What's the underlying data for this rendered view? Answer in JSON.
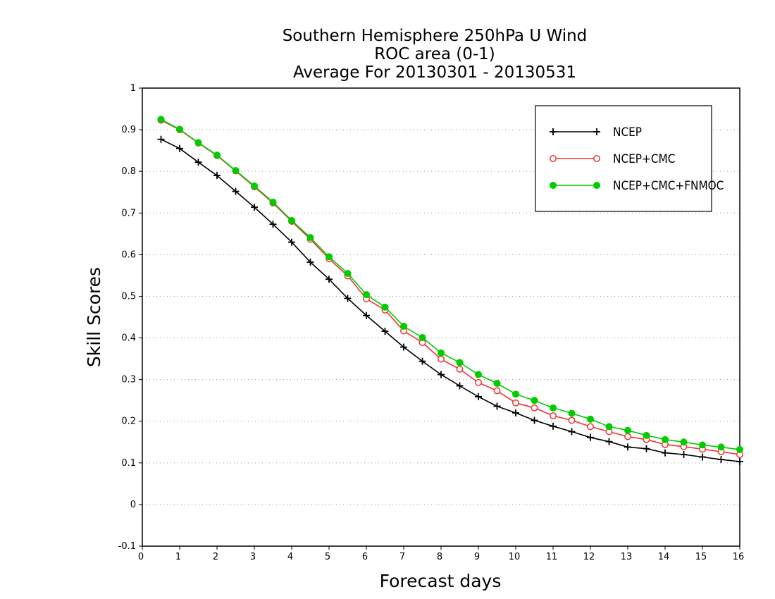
{
  "chart_data": {
    "type": "line",
    "title": [
      "Southern Hemisphere 250hPa U Wind",
      "ROC area (0-1)",
      "Average For 20130301 - 20130531"
    ],
    "xlabel": "Forecast days",
    "ylabel": "Skill Scores",
    "xlim": [
      0,
      16
    ],
    "ylim": [
      -0.1,
      1
    ],
    "x_ticks": [
      0,
      1,
      2,
      3,
      4,
      5,
      6,
      7,
      8,
      9,
      10,
      11,
      12,
      13,
      14,
      15,
      16
    ],
    "y_ticks": [
      -0.1,
      0,
      0.1,
      0.2,
      0.3,
      0.4,
      0.5,
      0.6,
      0.7,
      0.8,
      0.9,
      1
    ],
    "y_tick_labels": [
      "-0.1",
      "0",
      "0.1",
      "0.2",
      "0.3",
      "0.4",
      "0.5",
      "0.6",
      "0.7",
      "0.8",
      "0.9",
      "1"
    ],
    "grid": "horizontal-dotted",
    "legend_position": "top-right",
    "x": [
      0.5,
      1,
      1.5,
      2,
      2.5,
      3,
      3.5,
      4,
      4.5,
      5,
      5.5,
      6,
      6.5,
      7,
      7.5,
      8,
      8.5,
      9,
      9.5,
      10,
      10.5,
      11,
      11.5,
      12,
      12.5,
      13,
      13.5,
      14,
      14.5,
      15,
      15.5,
      16
    ],
    "series": [
      {
        "name": "NCEP",
        "color": "#000000",
        "marker": "plus",
        "values": [
          0.877,
          0.855,
          0.822,
          0.79,
          0.752,
          0.714,
          0.673,
          0.63,
          0.582,
          0.541,
          0.495,
          0.454,
          0.416,
          0.378,
          0.344,
          0.312,
          0.285,
          0.259,
          0.236,
          0.22,
          0.202,
          0.188,
          0.175,
          0.161,
          0.151,
          0.138,
          0.134,
          0.124,
          0.12,
          0.114,
          0.108,
          0.103
        ]
      },
      {
        "name": "NCEP+CMC",
        "color": "#ee3333",
        "marker": "open-circle",
        "values": [
          0.923,
          0.9,
          0.868,
          0.838,
          0.801,
          0.763,
          0.724,
          0.68,
          0.637,
          0.59,
          0.549,
          0.494,
          0.467,
          0.417,
          0.389,
          0.349,
          0.325,
          0.293,
          0.273,
          0.244,
          0.232,
          0.213,
          0.202,
          0.187,
          0.175,
          0.163,
          0.156,
          0.144,
          0.139,
          0.133,
          0.127,
          0.12
        ]
      },
      {
        "name": "NCEP+CMC+FNMOC",
        "color": "#00cc00",
        "marker": "filled-circle",
        "values": [
          0.925,
          0.901,
          0.869,
          0.839,
          0.802,
          0.765,
          0.726,
          0.682,
          0.641,
          0.595,
          0.555,
          0.504,
          0.474,
          0.428,
          0.401,
          0.364,
          0.341,
          0.312,
          0.291,
          0.265,
          0.25,
          0.232,
          0.219,
          0.205,
          0.187,
          0.178,
          0.166,
          0.156,
          0.15,
          0.143,
          0.138,
          0.132
        ]
      }
    ]
  }
}
